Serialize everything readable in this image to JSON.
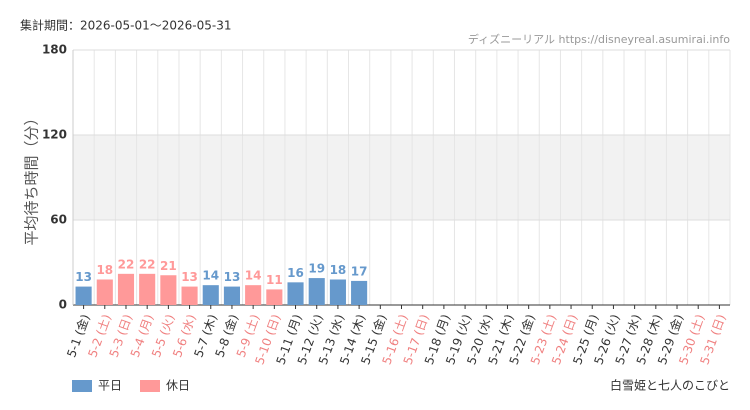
{
  "chart_data": {
    "type": "bar",
    "period": "集計期間：2026-05-01～2026-05-31",
    "source": "ディズニーリアル https://disneyreal.asumirai.info",
    "ylabel": "平均待ち時間（分）",
    "attraction": "白雪姫と七人のこびと",
    "categories": [
      "5-1 (金)",
      "5-2 (土)",
      "5-3 (日)",
      "5-4 (月)",
      "5-5 (火)",
      "5-6 (水)",
      "5-7 (木)",
      "5-8 (金)",
      "5-9 (土)",
      "5-10 (日)",
      "5-11 (月)",
      "5-12 (火)",
      "5-13 (水)",
      "5-14 (木)",
      "5-15 (金)",
      "5-16 (土)",
      "5-17 (日)",
      "5-18 (月)",
      "5-19 (火)",
      "5-20 (水)",
      "5-21 (木)",
      "5-22 (金)",
      "5-23 (土)",
      "5-24 (日)",
      "5-25 (月)",
      "5-26 (火)",
      "5-27 (水)",
      "5-28 (木)",
      "5-29 (金)",
      "5-30 (土)",
      "5-31 (日)"
    ],
    "category_label_colors": [
      "#333",
      "#f08080",
      "#f08080",
      "#f08080",
      "#f08080",
      "#f08080",
      "#333",
      "#333",
      "#f08080",
      "#f08080",
      "#333",
      "#333",
      "#333",
      "#333",
      "#333",
      "#f08080",
      "#f08080",
      "#333",
      "#333",
      "#333",
      "#333",
      "#333",
      "#f08080",
      "#f08080",
      "#333",
      "#333",
      "#333",
      "#333",
      "#333",
      "#f08080",
      "#f08080"
    ],
    "series": [
      {
        "name": "平日",
        "color": "#6699cc",
        "values": [
          13,
          null,
          null,
          null,
          null,
          null,
          14,
          13,
          null,
          null,
          16,
          19,
          18,
          17,
          null,
          null,
          null,
          null,
          null,
          null,
          null,
          null,
          null,
          null,
          null,
          null,
          null,
          null,
          null,
          null,
          null
        ]
      },
      {
        "name": "休日",
        "color": "#ff9999",
        "values": [
          null,
          18,
          22,
          22,
          21,
          13,
          null,
          null,
          14,
          11,
          null,
          null,
          null,
          null,
          null,
          null,
          null,
          null,
          null,
          null,
          null,
          null,
          null,
          null,
          null,
          null,
          null,
          null,
          null,
          null,
          null
        ]
      }
    ],
    "ylim": [
      0,
      180
    ],
    "yticks": [
      0,
      60,
      120,
      180
    ],
    "grid": true
  }
}
